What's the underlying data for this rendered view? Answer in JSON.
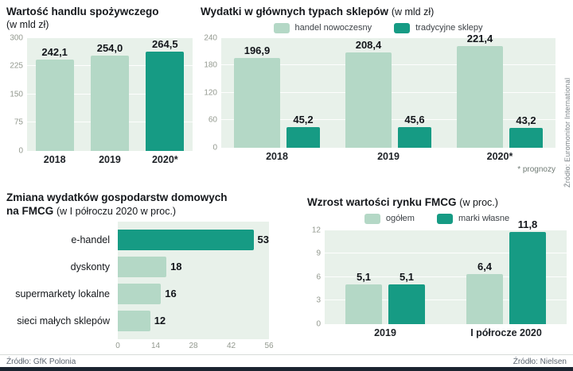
{
  "colors": {
    "light_green": "#b4d8c6",
    "teal": "#169b84",
    "panel_bg": "#e8f1ea",
    "accent_bar": "#1b2430"
  },
  "chart_data": [
    {
      "id": "food-trade-value",
      "type": "bar",
      "title": "Wartość handlu spożywczego",
      "subtitle": "(w mld zł)",
      "categories": [
        "2018",
        "2019",
        "2020*"
      ],
      "values": [
        242.1,
        254.0,
        264.5
      ],
      "value_labels": [
        "242,1",
        "254,0",
        "264,5"
      ],
      "bar_colors": [
        "light",
        "light",
        "teal"
      ],
      "ylim": [
        0,
        300
      ],
      "yticks": [
        300,
        225,
        150,
        75,
        0
      ],
      "grid": true,
      "legend_position": "none"
    },
    {
      "id": "store-type-spending",
      "type": "bar",
      "title": "Wydatki w głównych typach sklepów",
      "subtitle": "(w mld zł)",
      "legend": [
        {
          "label": "handel nowoczesny",
          "color": "light"
        },
        {
          "label": "tradycyjne sklepy",
          "color": "teal"
        }
      ],
      "legend_position": "top",
      "categories": [
        "2018",
        "2019",
        "2020*"
      ],
      "series": [
        {
          "name": "handel nowoczesny",
          "color": "light",
          "values": [
            196.9,
            208.4,
            221.4
          ],
          "labels": [
            "196,9",
            "208,4",
            "221,4"
          ]
        },
        {
          "name": "tradycyjne sklepy",
          "color": "teal",
          "values": [
            45.2,
            45.6,
            43.2
          ],
          "labels": [
            "45,2",
            "45,6",
            "43,2"
          ]
        }
      ],
      "ylim": [
        0,
        240
      ],
      "yticks": [
        240,
        180,
        120,
        60,
        0
      ],
      "footnote": "* prognozy",
      "grid": true
    },
    {
      "id": "household-fmcg-change",
      "type": "bar-horizontal",
      "title": "Zmiana wydatków gospodarstw domowych na FMCG",
      "subtitle": "(w I półroczu 2020 w proc.)",
      "categories": [
        "e-handel",
        "dyskonty",
        "supermarkety lokalne",
        "sieci małych sklepów"
      ],
      "values": [
        53,
        18,
        16,
        12
      ],
      "value_labels": [
        "53",
        "18",
        "16",
        "12"
      ],
      "bar_colors": [
        "teal",
        "light",
        "light",
        "light"
      ],
      "xlim": [
        0,
        56
      ],
      "xticks": [
        0,
        14,
        28,
        42,
        56
      ],
      "grid": false
    },
    {
      "id": "fmcg-market-growth",
      "type": "bar",
      "title": "Wzrost wartości rynku FMCG",
      "subtitle": "(w proc.)",
      "legend": [
        {
          "label": "ogółem",
          "color": "light"
        },
        {
          "label": "marki własne",
          "color": "teal"
        }
      ],
      "legend_position": "top",
      "categories": [
        "2019",
        "I półrocze 2020"
      ],
      "series": [
        {
          "name": "ogółem",
          "color": "light",
          "values": [
            5.1,
            6.4
          ],
          "labels": [
            "5,1",
            "6,4"
          ]
        },
        {
          "name": "marki własne",
          "color": "teal",
          "values": [
            5.1,
            11.8
          ],
          "labels": [
            "5,1",
            "11,8"
          ]
        }
      ],
      "ylim": [
        0,
        12
      ],
      "yticks": [
        12,
        9,
        6,
        3,
        0
      ],
      "grid": true
    }
  ],
  "sources": {
    "euromonitor": "Źródło: Euromonitor International",
    "gfk": "Źródło: GfK Polonia",
    "nielsen": "Źródło: Nielsen"
  }
}
